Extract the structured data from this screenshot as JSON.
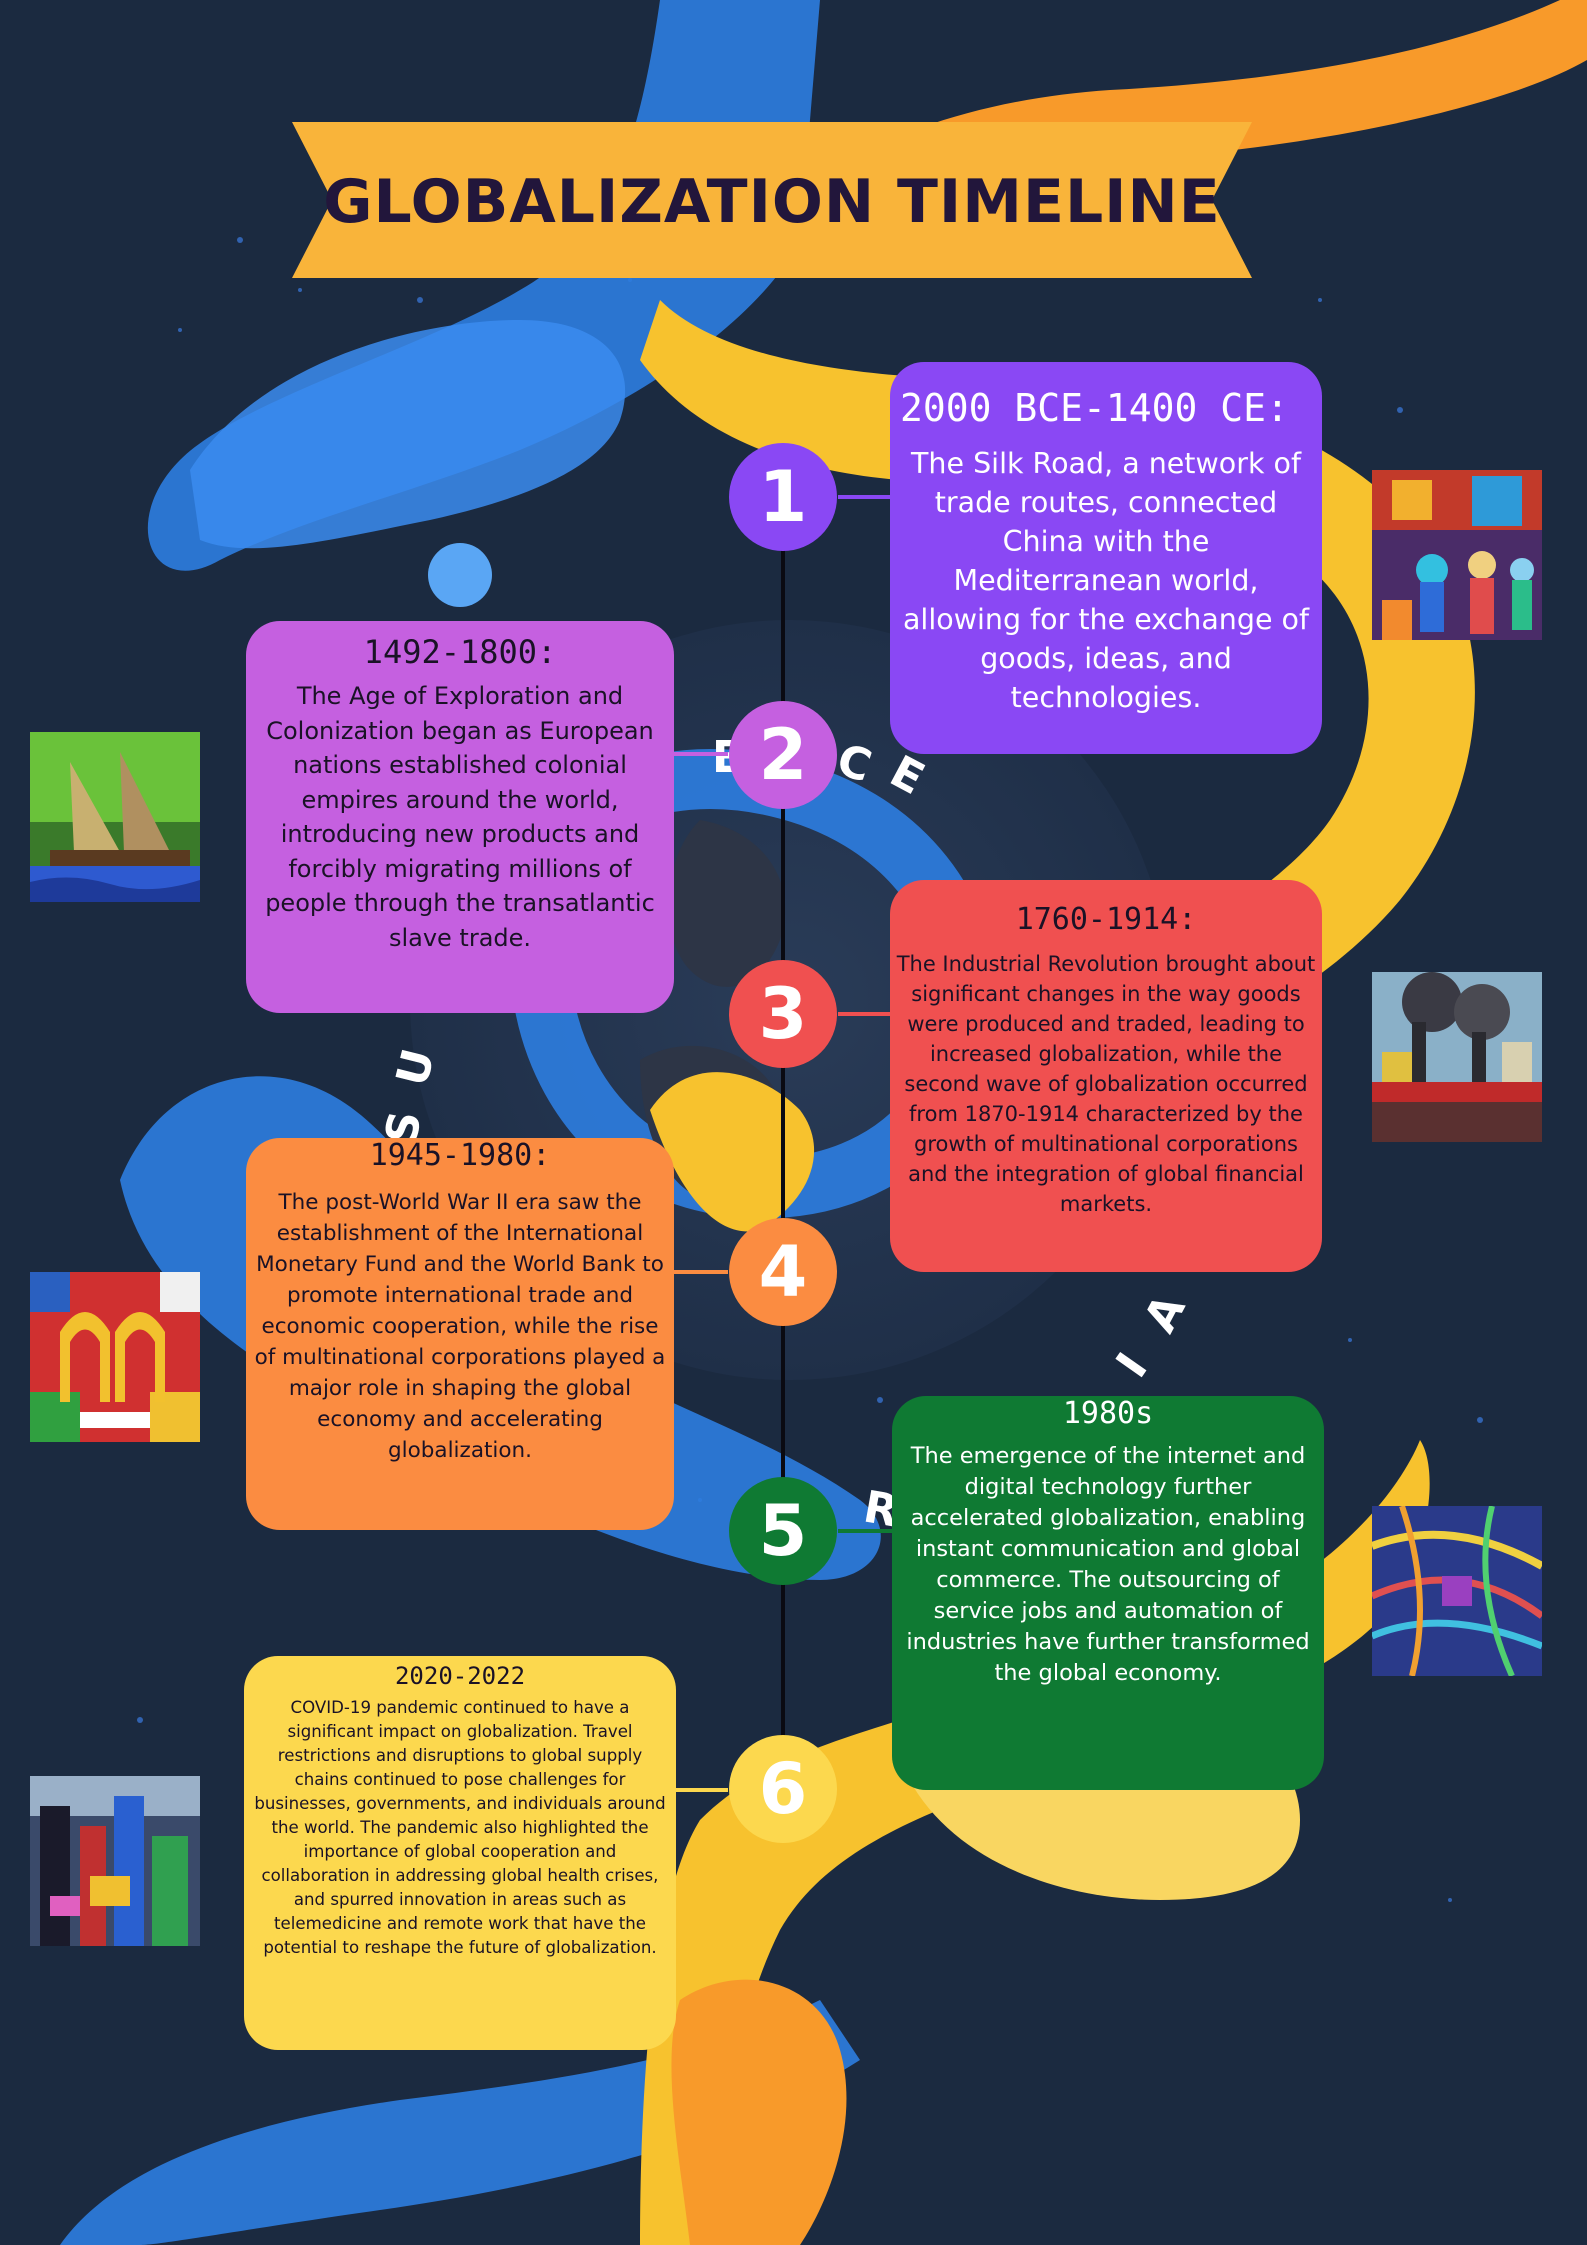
{
  "title": "GLOBALIZATION TIMELINE",
  "colors": {
    "background": "#1b2a40",
    "banner": "#f9b43a",
    "title_text": "#22163b",
    "blue_hand": "#2e7de0",
    "yellow_hand": "#f7c22e",
    "spine": "#0a0a12"
  },
  "arc_text_fragments": [
    "E",
    "C",
    "E",
    "S",
    "U",
    "A",
    "I",
    "R",
    "A"
  ],
  "events": [
    {
      "number": "1",
      "date": "2000 BCE-1400 CE:",
      "text": "The Silk Road, a network of trade routes, connected China with the Mediterranean world, allowing for the exchange of goods, ideas, and technologies.",
      "color": "#8a48f4",
      "image_icon": "market-painting-icon"
    },
    {
      "number": "2",
      "date": "1492-1800:",
      "text": "The Age of Exploration and Colonization began as European nations established colonial empires around the world, introducing new products and forcibly migrating millions of people through the transatlantic slave trade.",
      "color": "#c560e0",
      "image_icon": "sailing-ship-painting-icon"
    },
    {
      "number": "3",
      "date": "1760-1914:",
      "text": "The Industrial Revolution brought about significant changes in the way goods were produced and traded, leading to increased globalization, while the second wave of globalization occurred from 1870-1914 characterized by the growth of multinational corporations and the integration of global financial markets.",
      "color": "#f05050",
      "image_icon": "factory-painting-icon"
    },
    {
      "number": "4",
      "date": "1945-1980:",
      "text": "The post-World War II era saw the establishment of the International Monetary Fund and the World Bank to promote international trade and economic cooperation, while the rise of multinational corporations played a major role in shaping the global economy and accelerating globalization.",
      "color": "#fb8c41",
      "image_icon": "brand-collage-icon"
    },
    {
      "number": "5",
      "date": "1980s",
      "text": "The emergence of the internet and digital technology further accelerated globalization, enabling instant communication and global commerce. The outsourcing of service jobs and automation of industries have further transformed the global economy.",
      "color": "#0f7a33",
      "image_icon": "cables-collage-icon"
    },
    {
      "number": "6",
      "date": "2020-2022",
      "text": "COVID-19 pandemic continued to have a significant impact on globalization. Travel restrictions and disruptions to global supply chains continued to pose challenges for businesses, governments, and individuals around the world. The pandemic also highlighted the importance of global cooperation and collaboration in addressing global health crises, and spurred innovation in areas such as telemedicine and remote work that have the potential to reshape the future of globalization.",
      "color": "#fcd84e",
      "image_icon": "city-collage-icon"
    }
  ]
}
